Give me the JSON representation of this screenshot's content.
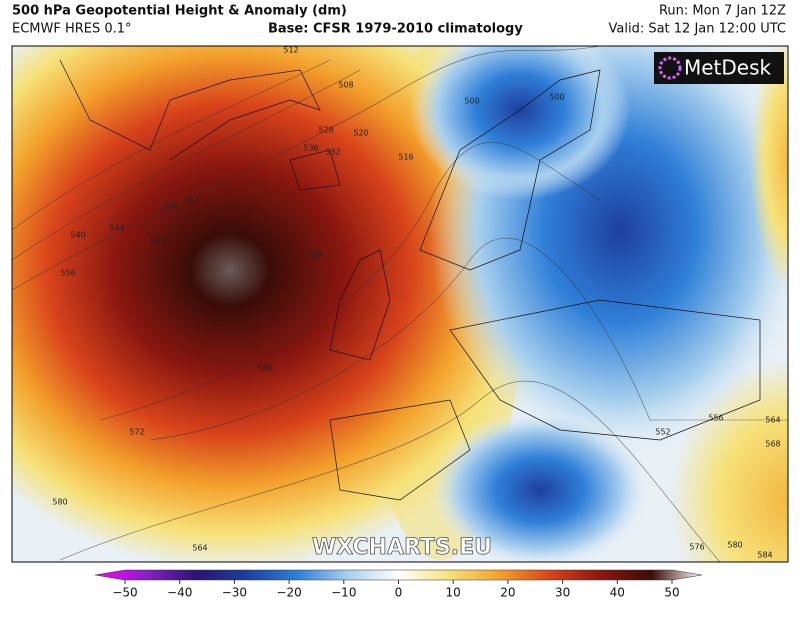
{
  "header": {
    "title": "500 hPa Geopotential Height & Anomaly (dm)",
    "model": "ECMWF HRES 0.1°",
    "base": "Base: CFSR 1979-2010 climatology",
    "run": "Run: Mon 7 Jan 12Z",
    "valid": "Valid: Sat 12 Jan 12:00 UTC"
  },
  "logo": "MetDesk",
  "watermark": "WXCHARTS.EU",
  "contour_labels": [
    "512",
    "508",
    "500",
    "500",
    "520",
    "516",
    "528",
    "532",
    "536",
    "540",
    "544",
    "548",
    "552",
    "556",
    "560",
    "568",
    "572",
    "580",
    "580",
    "564",
    "552",
    "556",
    "564",
    "568",
    "576",
    "580",
    "584"
  ],
  "colorbar": {
    "lim": [
      -50,
      50
    ],
    "ticks": [
      {
        "value": -50,
        "label": "−50"
      },
      {
        "value": -40,
        "label": "−40"
      },
      {
        "value": -30,
        "label": "−30"
      },
      {
        "value": -20,
        "label": "−20"
      },
      {
        "value": -10,
        "label": "−10"
      },
      0,
      10,
      20,
      30,
      40,
      50
    ],
    "colors": [
      "#ff00ff",
      "#8a1fc8",
      "#2a1470",
      "#1e3f9e",
      "#2f7fd8",
      "#a9d0ee",
      "#ffffff",
      "#f6e27a",
      "#f3a12c",
      "#d8431b",
      "#8b1710",
      "#3a0c08",
      "#ffffff"
    ]
  }
}
